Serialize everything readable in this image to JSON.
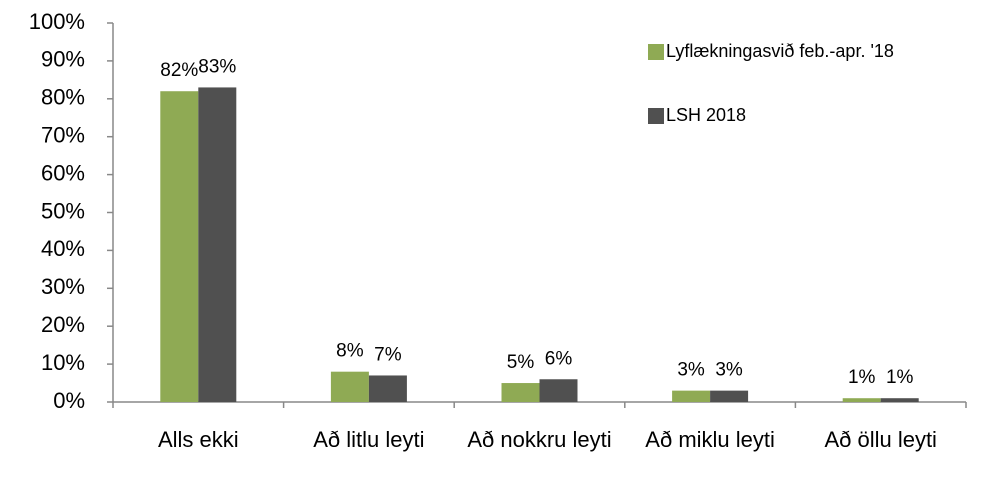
{
  "chart_data": {
    "type": "bar",
    "categories": [
      "Alls ekki",
      "Að litlu leyti",
      "Að nokkru leyti",
      "Að miklu leyti",
      "Að öllu leyti"
    ],
    "series": [
      {
        "name": "Lyflækningasvið feb.-apr. '18",
        "color": "#8faa54",
        "values": [
          82,
          8,
          5,
          3,
          1
        ],
        "value_labels": [
          "82%",
          "8%",
          "5%",
          "3%",
          "1%"
        ]
      },
      {
        "name": "LSH 2018",
        "color": "#505050",
        "values": [
          83,
          7,
          6,
          3,
          1
        ],
        "value_labels": [
          "83%",
          "7%",
          "6%",
          "3%",
          "1%"
        ]
      }
    ],
    "ylim": [
      0,
      100
    ],
    "yticks": [
      {
        "value": 0,
        "label": "0%"
      },
      {
        "value": 10,
        "label": "10%"
      },
      {
        "value": 20,
        "label": "20%"
      },
      {
        "value": 30,
        "label": "30%"
      },
      {
        "value": 40,
        "label": "40%"
      },
      {
        "value": 50,
        "label": "50%"
      },
      {
        "value": 60,
        "label": "60%"
      },
      {
        "value": 70,
        "label": "70%"
      },
      {
        "value": 80,
        "label": "80%"
      },
      {
        "value": 90,
        "label": "90%"
      },
      {
        "value": 100,
        "label": "100%"
      }
    ],
    "legend": "top-right"
  }
}
